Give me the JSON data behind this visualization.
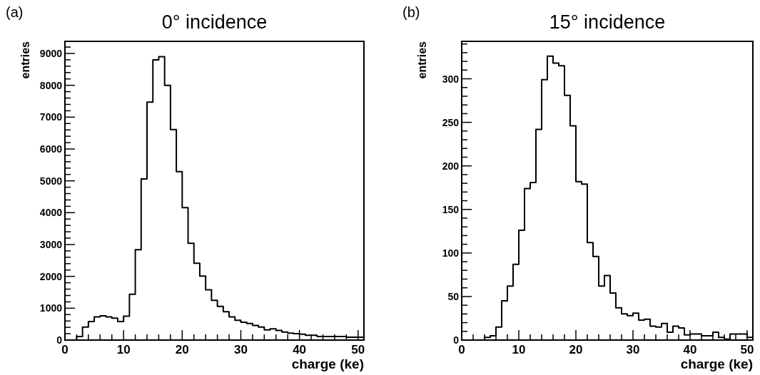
{
  "chart_data": [
    {
      "type": "histogram",
      "title": "0° incidence",
      "xlabel": "charge (ke)",
      "ylabel": "entries",
      "annotations": [
        "(a)"
      ],
      "color": "#000000",
      "bins": [
        0,
        1,
        2,
        3,
        4,
        5,
        6,
        7,
        8,
        9,
        10,
        11,
        12,
        13,
        14,
        15,
        16,
        17,
        18,
        19,
        20,
        21,
        22,
        23,
        24,
        25,
        26,
        27,
        28,
        29,
        30,
        31,
        32,
        33,
        34,
        35,
        36,
        37,
        38,
        39,
        40,
        41,
        42,
        43,
        44,
        45,
        46,
        47,
        48,
        49,
        50,
        51
      ],
      "values": [
        0,
        0,
        110,
        410,
        580,
        730,
        760,
        730,
        690,
        580,
        750,
        1440,
        2840,
        5060,
        7470,
        8800,
        8900,
        8000,
        6610,
        5290,
        4160,
        3040,
        2410,
        2010,
        1580,
        1250,
        1060,
        890,
        730,
        620,
        560,
        520,
        460,
        410,
        320,
        350,
        300,
        250,
        220,
        200,
        185,
        150,
        150,
        110,
        110,
        110,
        110,
        110,
        90,
        90,
        90
      ],
      "xlim": [
        0,
        51
      ],
      "ylim": [
        0,
        9380
      ],
      "xticks": [
        0,
        {
          "value": 2,
          "label": null
        },
        {
          "value": 4,
          "label": null
        },
        {
          "value": 6,
          "label": null
        },
        {
          "value": 8,
          "label": null
        },
        10,
        {
          "value": 12,
          "label": null
        },
        {
          "value": 14,
          "label": null
        },
        {
          "value": 16,
          "label": null
        },
        {
          "value": 18,
          "label": null
        },
        20,
        {
          "value": 22,
          "label": null
        },
        {
          "value": 24,
          "label": null
        },
        {
          "value": 26,
          "label": null
        },
        {
          "value": 28,
          "label": null
        },
        30,
        {
          "value": 32,
          "label": null
        },
        {
          "value": 34,
          "label": null
        },
        {
          "value": 36,
          "label": null
        },
        {
          "value": 38,
          "label": null
        },
        40,
        {
          "value": 42,
          "label": null
        },
        {
          "value": 44,
          "label": null
        },
        {
          "value": 46,
          "label": null
        },
        {
          "value": 48,
          "label": null
        },
        50
      ],
      "yticks": [
        0,
        1000,
        2000,
        3000,
        4000,
        5000,
        6000,
        7000,
        8000,
        9000
      ],
      "grid": false
    },
    {
      "type": "histogram",
      "title": "15° incidence",
      "xlabel": "charge (ke)",
      "ylabel": "entries",
      "annotations": [
        "(b)"
      ],
      "color": "#000000",
      "bins": [
        0,
        1,
        2,
        3,
        4,
        5,
        6,
        7,
        8,
        9,
        10,
        11,
        12,
        13,
        14,
        15,
        16,
        17,
        18,
        19,
        20,
        21,
        22,
        23,
        24,
        25,
        26,
        27,
        28,
        29,
        30,
        31,
        32,
        33,
        34,
        35,
        36,
        37,
        38,
        39,
        40,
        41,
        42,
        43,
        44,
        45,
        46,
        47,
        48,
        49,
        50,
        51
      ],
      "values": [
        0,
        0,
        0,
        0,
        3,
        5,
        15,
        45,
        62,
        87,
        126,
        174,
        181,
        242,
        299,
        326,
        318,
        315,
        281,
        246,
        182,
        179,
        112,
        96,
        62,
        74,
        54,
        37,
        30,
        28,
        31,
        23,
        24,
        16,
        15,
        19,
        9,
        16,
        14,
        6,
        7,
        7,
        5,
        5,
        9,
        3,
        1,
        7,
        7,
        7,
        3
      ],
      "xlim": [
        0,
        51
      ],
      "ylim": [
        0,
        343
      ],
      "xticks": [
        0,
        {
          "value": 2,
          "label": null
        },
        {
          "value": 4,
          "label": null
        },
        {
          "value": 6,
          "label": null
        },
        {
          "value": 8,
          "label": null
        },
        10,
        {
          "value": 12,
          "label": null
        },
        {
          "value": 14,
          "label": null
        },
        {
          "value": 16,
          "label": null
        },
        {
          "value": 18,
          "label": null
        },
        20,
        {
          "value": 22,
          "label": null
        },
        {
          "value": 24,
          "label": null
        },
        {
          "value": 26,
          "label": null
        },
        {
          "value": 28,
          "label": null
        },
        30,
        {
          "value": 32,
          "label": null
        },
        {
          "value": 34,
          "label": null
        },
        {
          "value": 36,
          "label": null
        },
        {
          "value": 38,
          "label": null
        },
        40,
        {
          "value": 42,
          "label": null
        },
        {
          "value": 44,
          "label": null
        },
        {
          "value": 46,
          "label": null
        },
        {
          "value": 48,
          "label": null
        },
        50
      ],
      "yticks": [
        0,
        50,
        100,
        150,
        200,
        250,
        300
      ],
      "grid": false
    }
  ]
}
